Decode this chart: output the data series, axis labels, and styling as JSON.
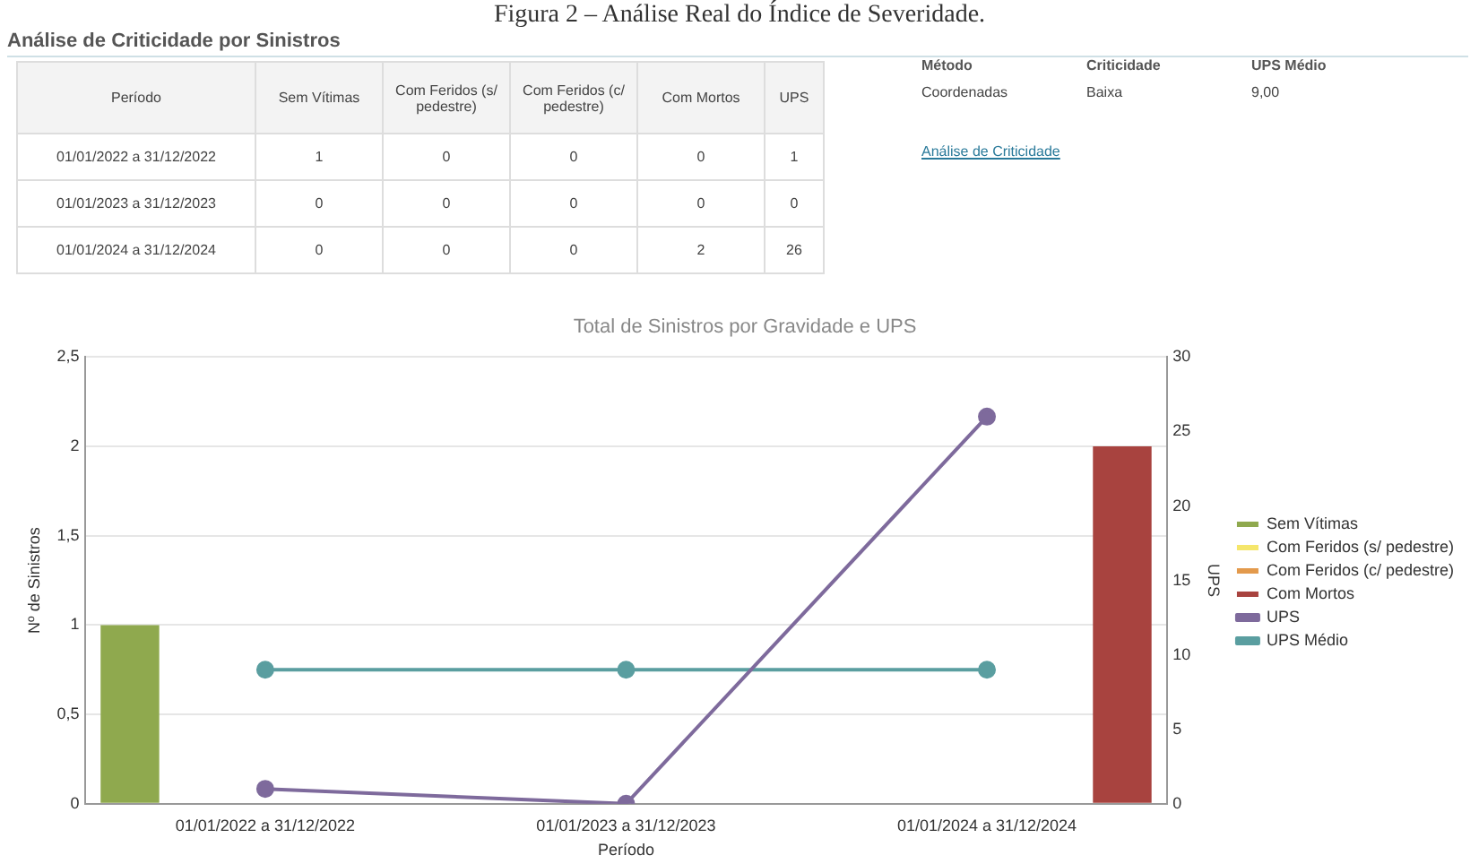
{
  "chart_data": {
    "type": "bar",
    "title": "Total de Sinistros por Gravidade e UPS",
    "xlabel": "Período",
    "ylabel": "Nº de Sinistros",
    "y2label": "UPS",
    "annotations": [
      "Figura 2 – Análise Real do Índice de Severidade.",
      "Análise de Criticidade por Sinistros",
      "Método",
      "Criticidade",
      "UPS Médio",
      "Coordenadas",
      "Baixa",
      "9,00",
      "Análise de Criticidade",
      "1",
      "0",
      "0",
      "0",
      "1",
      "0",
      "0",
      "0",
      "0",
      "0",
      "0",
      "0",
      "0",
      "2",
      "26"
    ],
    "categories": [
      "01/01/2022 a 31/12/2022",
      "01/01/2023 a 31/12/2023",
      "01/01/2024 a 31/12/2024"
    ],
    "series": [
      {
        "name": "Sem Vítimas",
        "color": "#8fa94e",
        "values": [
          1,
          0,
          0
        ]
      },
      {
        "name": "Com Feridos (s/ pedestre)",
        "color": "#f5e66b",
        "values": [
          0,
          0,
          0
        ]
      },
      {
        "name": "Com Feridos (c/ pedestre)",
        "color": "#e39a4c",
        "values": [
          0,
          0,
          0
        ]
      },
      {
        "name": "Com Mortos",
        "color": "#a8433f",
        "values": [
          0,
          0,
          2
        ]
      },
      {
        "name": "UPS",
        "type": "line",
        "axis": "y2",
        "color": "#7e6a9c",
        "values": [
          1,
          0,
          26
        ]
      },
      {
        "name": "UPS Médio",
        "type": "line",
        "axis": "y2",
        "color": "#5a9ea0",
        "values": [
          9,
          9,
          9
        ]
      }
    ],
    "ylim": [
      0,
      2.5
    ],
    "yticks": [
      0,
      {
        "value": 0.5,
        "label": "0,5"
      },
      1,
      {
        "value": 1.5,
        "label": "1,5"
      },
      2,
      {
        "value": 2.5,
        "label": "2,5"
      }
    ],
    "y2lim": [
      0,
      30
    ],
    "y2ticks": [
      0,
      5,
      10,
      15,
      20,
      25,
      30
    ],
    "grid": "y",
    "legend": "right",
    "marker": "circle"
  }
}
